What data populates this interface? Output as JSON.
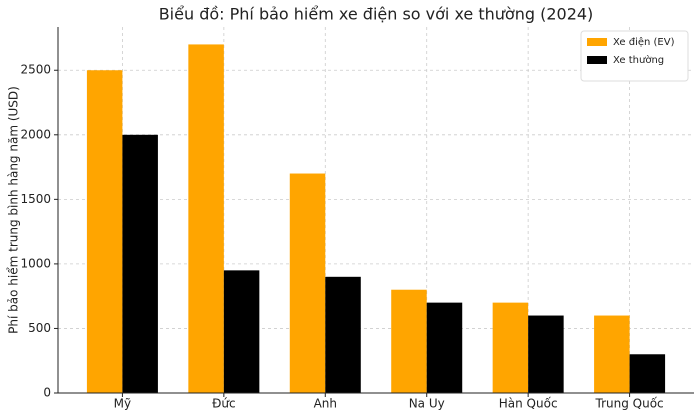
{
  "chart_data": {
    "type": "bar",
    "title": "Biểu đồ: Phí bảo hiểm xe điện so với xe thường (2024)",
    "y_label": "Phí bảo hiểm trung bình hàng năm (USD)",
    "categories": [
      "Mỹ",
      "Đức",
      "Anh",
      "Na Uy",
      "Hàn Quốc",
      "Trung Quốc"
    ],
    "series": [
      {
        "name": "Xe điện (EV)",
        "color": "#ffa500",
        "values": [
          2500,
          2700,
          1700,
          800,
          700,
          600
        ]
      },
      {
        "name": "Xe thường",
        "color": "#000000",
        "values": [
          2000,
          950,
          900,
          700,
          600,
          300
        ]
      }
    ],
    "ylim": [
      0,
      2835
    ],
    "yticks": [
      0,
      500,
      1000,
      1500,
      2000,
      2500
    ],
    "grid": true,
    "legend": "upper right"
  }
}
